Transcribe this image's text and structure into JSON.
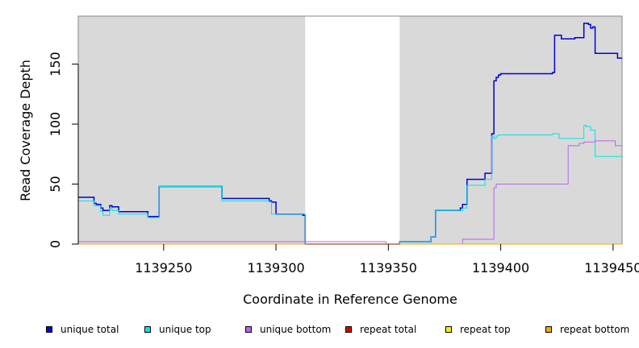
{
  "chart_data": {
    "type": "line",
    "title": "",
    "xlabel": "Coordinate in Reference Genome",
    "ylabel": "Read Coverage Depth",
    "xlim": [
      1139212,
      1139454
    ],
    "ylim": [
      0,
      190
    ],
    "x_ticks": [
      1139250,
      1139300,
      1139350,
      1139400,
      1139450
    ],
    "x_tick_labels": [
      "1139250",
      "1139300",
      "1139350",
      "1139400",
      "1139450"
    ],
    "y_ticks": [
      0,
      50,
      100,
      150
    ],
    "y_tick_labels": [
      "0",
      "50",
      "100",
      "150"
    ],
    "shaded_regions": [
      {
        "x0": 1139212,
        "x1": 1139313,
        "color": "#d9d9d9"
      },
      {
        "x0": 1139355,
        "x1": 1139454,
        "color": "#d9d9d9"
      }
    ],
    "series": [
      {
        "name": "unique total",
        "color": "#0000dd",
        "step": true,
        "x": [
          1139212,
          1139219,
          1139220,
          1139222,
          1139223,
          1139224,
          1139226,
          1139227,
          1139228,
          1139230,
          1139236,
          1139243,
          1139248,
          1139264,
          1139276,
          1139297,
          1139298,
          1139300,
          1139312,
          1139313,
          1139349,
          1139355,
          1139369,
          1139371,
          1139382,
          1139383,
          1139385,
          1139393,
          1139396,
          1139397,
          1139398,
          1139399,
          1139400,
          1139423,
          1139424,
          1139427,
          1139433,
          1139437,
          1139439,
          1139440,
          1139441,
          1139442,
          1139446,
          1139452,
          1139454
        ],
        "values": [
          39,
          34,
          33,
          30,
          28,
          28,
          32,
          31,
          31,
          27,
          27,
          23,
          48,
          48,
          38,
          36,
          35,
          25,
          24,
          0,
          0,
          2,
          6,
          28,
          30,
          33,
          54,
          59,
          92,
          136,
          139,
          141,
          142,
          143,
          174,
          171,
          172,
          184,
          183,
          180,
          181,
          159,
          159,
          155,
          155
        ]
      },
      {
        "name": "unique top",
        "color": "#00e5e5",
        "step": true,
        "x": [
          1139212,
          1139219,
          1139222,
          1139223,
          1139226,
          1139227,
          1139230,
          1139243,
          1139248,
          1139264,
          1139276,
          1139297,
          1139298,
          1139313,
          1139349,
          1139355,
          1139369,
          1139371,
          1139382,
          1139383,
          1139385,
          1139393,
          1139396,
          1139397,
          1139398,
          1139399,
          1139400,
          1139423,
          1139426,
          1139437,
          1139438,
          1139440,
          1139442,
          1139454
        ],
        "values": [
          36,
          32,
          27,
          24,
          30,
          28,
          25,
          22,
          48,
          48,
          36,
          35,
          25,
          0,
          0,
          2,
          6,
          28,
          28,
          30,
          49,
          54,
          90,
          88,
          90,
          91,
          91,
          92,
          88,
          99,
          98,
          95,
          73,
          73
        ]
      },
      {
        "name": "unique bottom",
        "color": "#b565f0",
        "step": true,
        "x": [
          1139212,
          1139276,
          1139349,
          1139381,
          1139383,
          1139396,
          1139397,
          1139398,
          1139423,
          1139430,
          1139432,
          1139435,
          1139437,
          1139439,
          1139442,
          1139451,
          1139454
        ],
        "values": [
          2,
          2,
          0,
          0,
          4,
          4,
          47,
          50,
          50,
          82,
          82,
          84,
          85,
          85,
          86,
          82,
          82
        ]
      },
      {
        "name": "repeat total",
        "color": "#dd0000",
        "step": true,
        "x": [
          1139212,
          1139454
        ],
        "values": [
          0,
          0
        ]
      },
      {
        "name": "repeat top",
        "color": "#ffee00",
        "step": true,
        "x": [
          1139212,
          1139454
        ],
        "values": [
          0,
          0
        ]
      },
      {
        "name": "repeat bottom",
        "color": "#ffa500",
        "step": true,
        "x": [
          1139212,
          1139454
        ],
        "values": [
          0,
          0
        ]
      }
    ],
    "legend": {
      "placement": "bottom",
      "entries": [
        {
          "label": "unique total",
          "color": "#0000dd"
        },
        {
          "label": "unique top",
          "color": "#00e5e5"
        },
        {
          "label": "unique bottom",
          "color": "#b565f0"
        },
        {
          "label": "repeat total",
          "color": "#dd0000"
        },
        {
          "label": "repeat top",
          "color": "#ffee00"
        },
        {
          "label": "repeat bottom",
          "color": "#ffa500"
        }
      ]
    }
  }
}
